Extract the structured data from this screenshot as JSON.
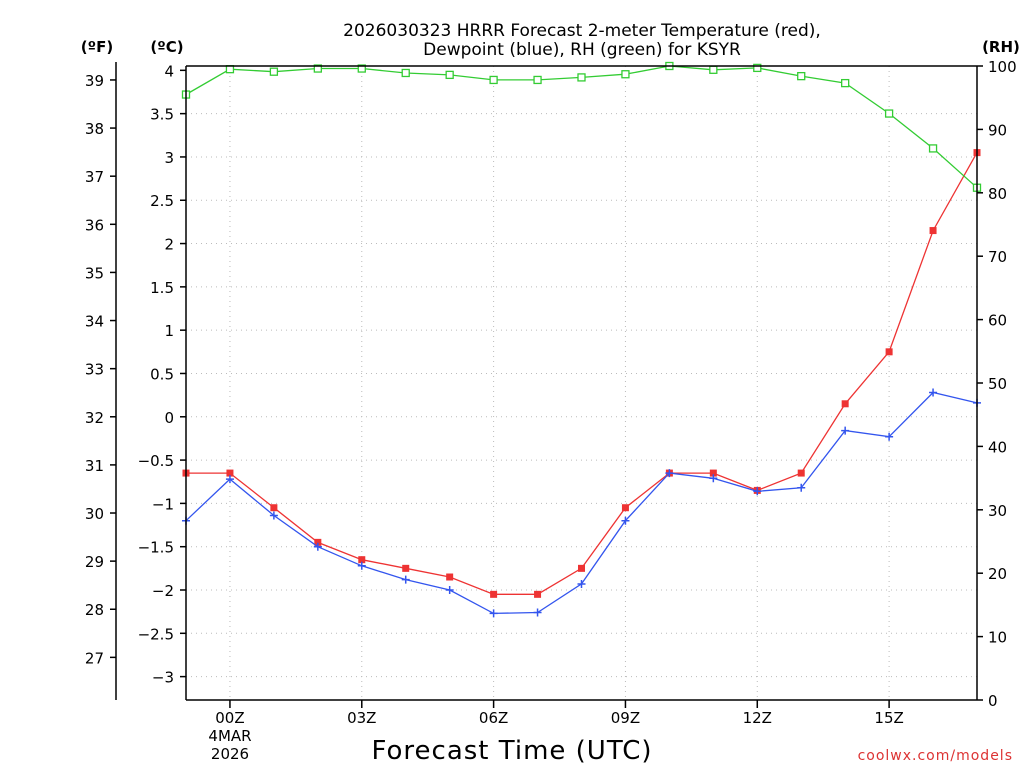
{
  "chart_data": {
    "type": "line",
    "title_line1": "2026030323 HRRR Forecast 2-meter Temperature (red),",
    "title_line2": "Dewpoint (blue), RH (green) for KSYR",
    "xlabel": "Forecast Time (UTC)",
    "left_unit_f": "(ºF)",
    "left_unit_c": "(ºC)",
    "right_unit": "(RH)",
    "date_label_day": "4MAR",
    "date_label_year": "2026",
    "watermark": "coolwx.com/models",
    "x_hours": [
      -1,
      0,
      1,
      2,
      3,
      4,
      5,
      6,
      7,
      8,
      9,
      10,
      11,
      12,
      13,
      14,
      15,
      16,
      17
    ],
    "xlim": [
      -1,
      17
    ],
    "x_ticks": [
      {
        "hour": 0,
        "label": "00Z"
      },
      {
        "hour": 3,
        "label": "03Z"
      },
      {
        "hour": 6,
        "label": "06Z"
      },
      {
        "hour": 9,
        "label": "09Z"
      },
      {
        "hour": 12,
        "label": "12Z"
      },
      {
        "hour": 15,
        "label": "15Z"
      }
    ],
    "ylim_c": [
      -3.27,
      4.05
    ],
    "yticks_c": [
      "4",
      "3.5",
      "3",
      "2.5",
      "2",
      "1.5",
      "1",
      "0.5",
      "0",
      "−0.5",
      "−1",
      "−1.5",
      "−2",
      "−2.5",
      "−3"
    ],
    "yticks_c_values": [
      4,
      3.5,
      3,
      2.5,
      2,
      1.5,
      1,
      0.5,
      0,
      -0.5,
      -1,
      -1.5,
      -2,
      -2.5,
      -3
    ],
    "yticks_f": [
      "39",
      "38",
      "37",
      "36",
      "35",
      "34",
      "33",
      "32",
      "31",
      "30",
      "29",
      "28",
      "27"
    ],
    "yticks_f_values": [
      39,
      38,
      37,
      36,
      35,
      34,
      33,
      32,
      31,
      30,
      29,
      28,
      27
    ],
    "ylim_rh": [
      0,
      100
    ],
    "yticks_rh": [
      "100",
      "90",
      "80",
      "70",
      "60",
      "50",
      "40",
      "30",
      "20",
      "10",
      "0"
    ],
    "yticks_rh_values": [
      100,
      90,
      80,
      70,
      60,
      50,
      40,
      30,
      20,
      10,
      0
    ],
    "series": [
      {
        "name": "Temperature",
        "color": "#ee3333",
        "axis": "celsius",
        "marker": "filled-square",
        "values": [
          -0.65,
          -0.65,
          -1.05,
          -1.45,
          -1.65,
          -1.75,
          -1.85,
          -2.05,
          -2.05,
          -1.75,
          -1.05,
          -0.65,
          -0.65,
          -0.85,
          -0.65,
          0.15,
          0.75,
          2.15,
          3.05
        ]
      },
      {
        "name": "Dewpoint",
        "color": "#3355ee",
        "axis": "celsius",
        "marker": "plus",
        "values": [
          -1.2,
          -0.72,
          -1.14,
          -1.5,
          -1.72,
          -1.88,
          -2.0,
          -2.27,
          -2.26,
          -1.93,
          -1.2,
          -0.65,
          -0.71,
          -0.86,
          -0.82,
          -0.16,
          -0.23,
          0.28,
          0.16
        ]
      },
      {
        "name": "RH",
        "color": "#33cc33",
        "axis": "rh",
        "marker": "open-square",
        "values": [
          95.5,
          99.5,
          99.1,
          99.6,
          99.6,
          98.9,
          98.6,
          97.8,
          97.8,
          98.2,
          98.7,
          100.0,
          99.4,
          99.7,
          98.4,
          97.3,
          92.5,
          87.0,
          80.8
        ]
      }
    ]
  }
}
